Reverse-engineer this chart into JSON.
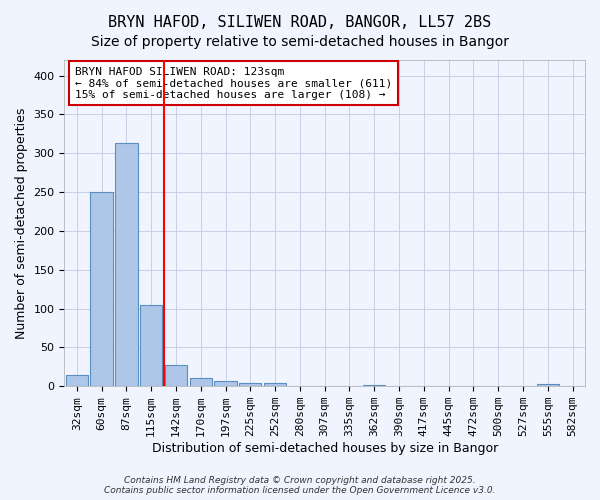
{
  "title": "BRYN HAFOD, SILIWEN ROAD, BANGOR, LL57 2BS",
  "subtitle": "Size of property relative to semi-detached houses in Bangor",
  "xlabel": "Distribution of semi-detached houses by size in Bangor",
  "ylabel": "Number of semi-detached properties",
  "categories": [
    "32sqm",
    "60sqm",
    "87sqm",
    "115sqm",
    "142sqm",
    "170sqm",
    "197sqm",
    "225sqm",
    "252sqm",
    "280sqm",
    "307sqm",
    "335sqm",
    "362sqm",
    "390sqm",
    "417sqm",
    "445sqm",
    "472sqm",
    "500sqm",
    "527sqm",
    "555sqm",
    "582sqm"
  ],
  "values": [
    15,
    250,
    313,
    105,
    27,
    10,
    7,
    4,
    4,
    0,
    0,
    0,
    2,
    0,
    0,
    0,
    0,
    0,
    0,
    3,
    0
  ],
  "bar_color": "#aec6e8",
  "bar_edge_color": "#5a8fc0",
  "red_line_x": 3.5,
  "annotation_title": "BRYN HAFOD SILIWEN ROAD: 123sqm",
  "annotation_line2": "← 84% of semi-detached houses are smaller (611)",
  "annotation_line3": "15% of semi-detached houses are larger (108) →",
  "annotation_box_color": "#ffffff",
  "annotation_box_edge_color": "#cc0000",
  "ylim": [
    0,
    420
  ],
  "yticks": [
    0,
    50,
    100,
    150,
    200,
    250,
    300,
    350,
    400
  ],
  "footer_line1": "Contains HM Land Registry data © Crown copyright and database right 2025.",
  "footer_line2": "Contains public sector information licensed under the Open Government Licence v3.0.",
  "bg_color": "#f0f4ff",
  "grid_color": "#c8d0e8",
  "title_fontsize": 11,
  "subtitle_fontsize": 10,
  "axis_label_fontsize": 9,
  "tick_fontsize": 8,
  "annotation_fontsize": 8,
  "footer_fontsize": 6.5
}
